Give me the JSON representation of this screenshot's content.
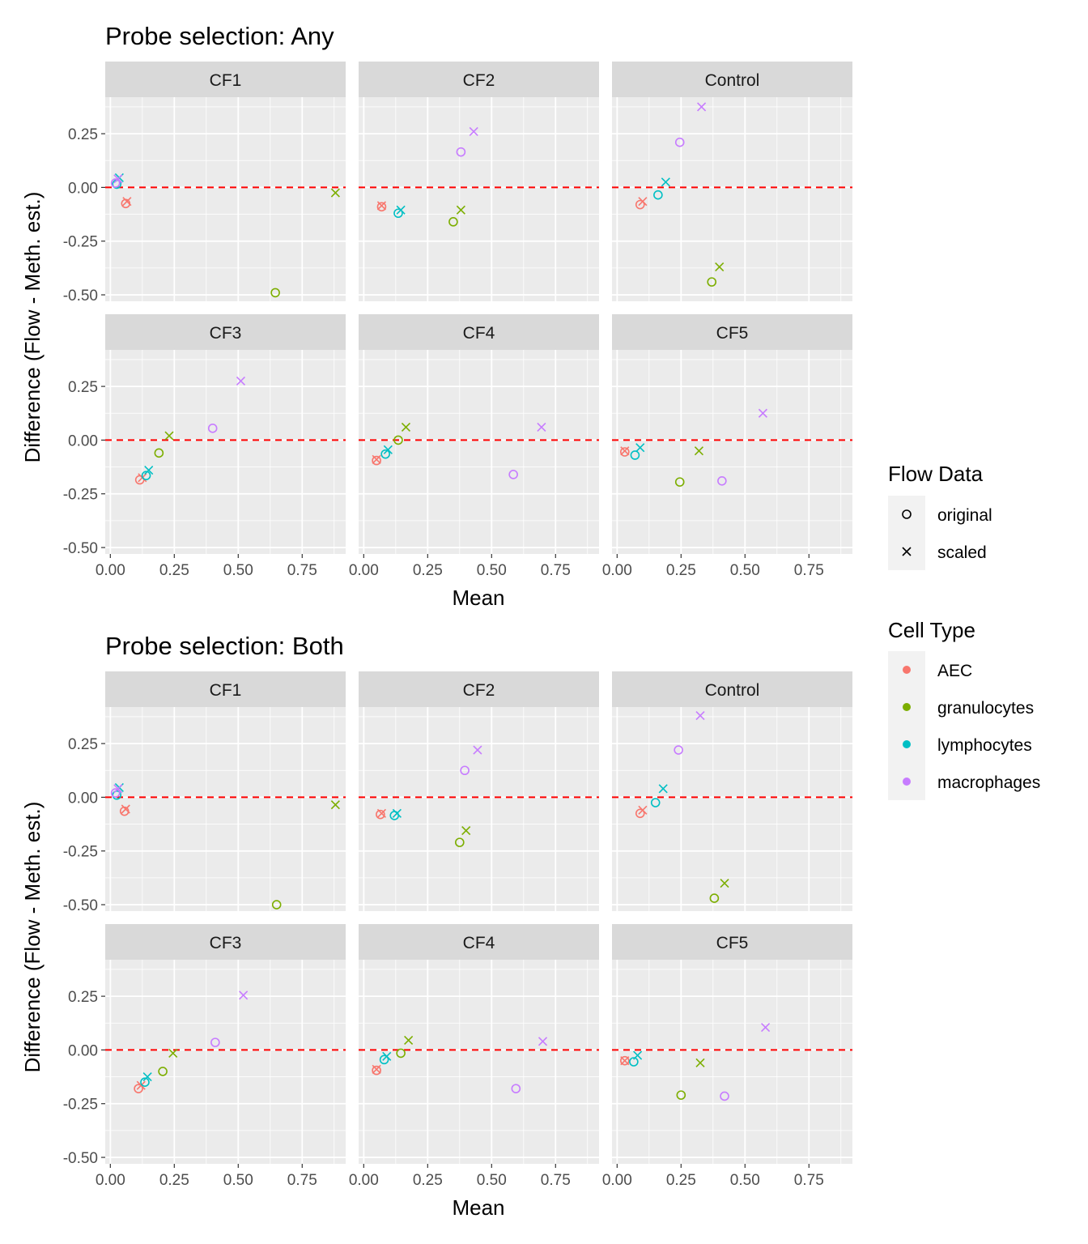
{
  "chart_data": [
    {
      "type": "scatter",
      "title": "Probe selection: Any",
      "xlabel": "Mean",
      "ylabel": "Difference (Flow - Meth. est.)",
      "xlim": [
        -0.02,
        0.92
      ],
      "ylim": [
        -0.53,
        0.42
      ],
      "x_ticks": [
        "0.00",
        "0.25",
        "0.50",
        "0.75"
      ],
      "y_ticks": [
        "0.25",
        "0.00",
        "-0.25",
        "-0.50"
      ],
      "reference_line": 0,
      "grid": true,
      "facets": [
        {
          "label": "CF1",
          "points": [
            {
              "x": 0.06,
              "y": -0.075,
              "cell": "AEC",
              "flow": "original"
            },
            {
              "x": 0.065,
              "y": -0.065,
              "cell": "AEC",
              "flow": "scaled"
            },
            {
              "x": 0.645,
              "y": -0.49,
              "cell": "granulocytes",
              "flow": "original"
            },
            {
              "x": 0.88,
              "y": -0.025,
              "cell": "granulocytes",
              "flow": "scaled"
            },
            {
              "x": 0.025,
              "y": 0.015,
              "cell": "lymphocytes",
              "flow": "original"
            },
            {
              "x": 0.035,
              "y": 0.045,
              "cell": "lymphocytes",
              "flow": "scaled"
            },
            {
              "x": 0.02,
              "y": 0.02,
              "cell": "macrophages",
              "flow": "original"
            },
            {
              "x": 0.03,
              "y": 0.04,
              "cell": "macrophages",
              "flow": "scaled"
            }
          ]
        },
        {
          "label": "CF2",
          "points": [
            {
              "x": 0.07,
              "y": -0.09,
              "cell": "AEC",
              "flow": "original"
            },
            {
              "x": 0.07,
              "y": -0.085,
              "cell": "AEC",
              "flow": "scaled"
            },
            {
              "x": 0.35,
              "y": -0.16,
              "cell": "granulocytes",
              "flow": "original"
            },
            {
              "x": 0.38,
              "y": -0.105,
              "cell": "granulocytes",
              "flow": "scaled"
            },
            {
              "x": 0.135,
              "y": -0.12,
              "cell": "lymphocytes",
              "flow": "original"
            },
            {
              "x": 0.145,
              "y": -0.105,
              "cell": "lymphocytes",
              "flow": "scaled"
            },
            {
              "x": 0.38,
              "y": 0.165,
              "cell": "macrophages",
              "flow": "original"
            },
            {
              "x": 0.43,
              "y": 0.26,
              "cell": "macrophages",
              "flow": "scaled"
            }
          ]
        },
        {
          "label": "Control",
          "points": [
            {
              "x": 0.09,
              "y": -0.08,
              "cell": "AEC",
              "flow": "original"
            },
            {
              "x": 0.1,
              "y": -0.065,
              "cell": "AEC",
              "flow": "scaled"
            },
            {
              "x": 0.37,
              "y": -0.44,
              "cell": "granulocytes",
              "flow": "original"
            },
            {
              "x": 0.4,
              "y": -0.37,
              "cell": "granulocytes",
              "flow": "scaled"
            },
            {
              "x": 0.16,
              "y": -0.035,
              "cell": "lymphocytes",
              "flow": "original"
            },
            {
              "x": 0.19,
              "y": 0.025,
              "cell": "lymphocytes",
              "flow": "scaled"
            },
            {
              "x": 0.245,
              "y": 0.21,
              "cell": "macrophages",
              "flow": "original"
            },
            {
              "x": 0.33,
              "y": 0.375,
              "cell": "macrophages",
              "flow": "scaled"
            }
          ]
        },
        {
          "label": "CF3",
          "points": [
            {
              "x": 0.115,
              "y": -0.185,
              "cell": "AEC",
              "flow": "original"
            },
            {
              "x": 0.125,
              "y": -0.175,
              "cell": "AEC",
              "flow": "scaled"
            },
            {
              "x": 0.19,
              "y": -0.06,
              "cell": "granulocytes",
              "flow": "original"
            },
            {
              "x": 0.23,
              "y": 0.02,
              "cell": "granulocytes",
              "flow": "scaled"
            },
            {
              "x": 0.14,
              "y": -0.165,
              "cell": "lymphocytes",
              "flow": "original"
            },
            {
              "x": 0.15,
              "y": -0.14,
              "cell": "lymphocytes",
              "flow": "scaled"
            },
            {
              "x": 0.4,
              "y": 0.055,
              "cell": "macrophages",
              "flow": "original"
            },
            {
              "x": 0.51,
              "y": 0.275,
              "cell": "macrophages",
              "flow": "scaled"
            }
          ]
        },
        {
          "label": "CF4",
          "points": [
            {
              "x": 0.05,
              "y": -0.095,
              "cell": "AEC",
              "flow": "original"
            },
            {
              "x": 0.05,
              "y": -0.09,
              "cell": "AEC",
              "flow": "scaled"
            },
            {
              "x": 0.135,
              "y": 0.0,
              "cell": "granulocytes",
              "flow": "original"
            },
            {
              "x": 0.165,
              "y": 0.06,
              "cell": "granulocytes",
              "flow": "scaled"
            },
            {
              "x": 0.085,
              "y": -0.065,
              "cell": "lymphocytes",
              "flow": "original"
            },
            {
              "x": 0.095,
              "y": -0.045,
              "cell": "lymphocytes",
              "flow": "scaled"
            },
            {
              "x": 0.585,
              "y": -0.16,
              "cell": "macrophages",
              "flow": "original"
            },
            {
              "x": 0.695,
              "y": 0.06,
              "cell": "macrophages",
              "flow": "scaled"
            }
          ]
        },
        {
          "label": "CF5",
          "points": [
            {
              "x": 0.03,
              "y": -0.055,
              "cell": "AEC",
              "flow": "original"
            },
            {
              "x": 0.03,
              "y": -0.05,
              "cell": "AEC",
              "flow": "scaled"
            },
            {
              "x": 0.245,
              "y": -0.195,
              "cell": "granulocytes",
              "flow": "original"
            },
            {
              "x": 0.32,
              "y": -0.05,
              "cell": "granulocytes",
              "flow": "scaled"
            },
            {
              "x": 0.07,
              "y": -0.07,
              "cell": "lymphocytes",
              "flow": "original"
            },
            {
              "x": 0.09,
              "y": -0.035,
              "cell": "lymphocytes",
              "flow": "scaled"
            },
            {
              "x": 0.41,
              "y": -0.19,
              "cell": "macrophages",
              "flow": "original"
            },
            {
              "x": 0.57,
              "y": 0.125,
              "cell": "macrophages",
              "flow": "scaled"
            }
          ]
        }
      ]
    },
    {
      "type": "scatter",
      "title": "Probe selection: Both",
      "xlabel": "Mean",
      "ylabel": "Difference (Flow - Meth. est.)",
      "xlim": [
        -0.02,
        0.92
      ],
      "ylim": [
        -0.53,
        0.42
      ],
      "x_ticks": [
        "0.00",
        "0.25",
        "0.50",
        "0.75"
      ],
      "y_ticks": [
        "0.25",
        "0.00",
        "-0.25",
        "-0.50"
      ],
      "reference_line": 0,
      "grid": true,
      "facets": [
        {
          "label": "CF1",
          "points": [
            {
              "x": 0.055,
              "y": -0.065,
              "cell": "AEC",
              "flow": "original"
            },
            {
              "x": 0.06,
              "y": -0.055,
              "cell": "AEC",
              "flow": "scaled"
            },
            {
              "x": 0.65,
              "y": -0.5,
              "cell": "granulocytes",
              "flow": "original"
            },
            {
              "x": 0.88,
              "y": -0.035,
              "cell": "granulocytes",
              "flow": "scaled"
            },
            {
              "x": 0.025,
              "y": 0.01,
              "cell": "lymphocytes",
              "flow": "original"
            },
            {
              "x": 0.035,
              "y": 0.045,
              "cell": "lymphocytes",
              "flow": "scaled"
            },
            {
              "x": 0.02,
              "y": 0.02,
              "cell": "macrophages",
              "flow": "original"
            },
            {
              "x": 0.03,
              "y": 0.04,
              "cell": "macrophages",
              "flow": "scaled"
            }
          ]
        },
        {
          "label": "CF2",
          "points": [
            {
              "x": 0.065,
              "y": -0.08,
              "cell": "AEC",
              "flow": "original"
            },
            {
              "x": 0.07,
              "y": -0.075,
              "cell": "AEC",
              "flow": "scaled"
            },
            {
              "x": 0.375,
              "y": -0.21,
              "cell": "granulocytes",
              "flow": "original"
            },
            {
              "x": 0.4,
              "y": -0.155,
              "cell": "granulocytes",
              "flow": "scaled"
            },
            {
              "x": 0.12,
              "y": -0.085,
              "cell": "lymphocytes",
              "flow": "original"
            },
            {
              "x": 0.13,
              "y": -0.075,
              "cell": "lymphocytes",
              "flow": "scaled"
            },
            {
              "x": 0.395,
              "y": 0.125,
              "cell": "macrophages",
              "flow": "original"
            },
            {
              "x": 0.445,
              "y": 0.22,
              "cell": "macrophages",
              "flow": "scaled"
            }
          ]
        },
        {
          "label": "Control",
          "points": [
            {
              "x": 0.09,
              "y": -0.075,
              "cell": "AEC",
              "flow": "original"
            },
            {
              "x": 0.1,
              "y": -0.06,
              "cell": "AEC",
              "flow": "scaled"
            },
            {
              "x": 0.38,
              "y": -0.47,
              "cell": "granulocytes",
              "flow": "original"
            },
            {
              "x": 0.42,
              "y": -0.4,
              "cell": "granulocytes",
              "flow": "scaled"
            },
            {
              "x": 0.15,
              "y": -0.025,
              "cell": "lymphocytes",
              "flow": "original"
            },
            {
              "x": 0.18,
              "y": 0.04,
              "cell": "lymphocytes",
              "flow": "scaled"
            },
            {
              "x": 0.24,
              "y": 0.22,
              "cell": "macrophages",
              "flow": "original"
            },
            {
              "x": 0.325,
              "y": 0.38,
              "cell": "macrophages",
              "flow": "scaled"
            }
          ]
        },
        {
          "label": "CF3",
          "points": [
            {
              "x": 0.11,
              "y": -0.18,
              "cell": "AEC",
              "flow": "original"
            },
            {
              "x": 0.12,
              "y": -0.165,
              "cell": "AEC",
              "flow": "scaled"
            },
            {
              "x": 0.205,
              "y": -0.1,
              "cell": "granulocytes",
              "flow": "original"
            },
            {
              "x": 0.245,
              "y": -0.015,
              "cell": "granulocytes",
              "flow": "scaled"
            },
            {
              "x": 0.135,
              "y": -0.15,
              "cell": "lymphocytes",
              "flow": "original"
            },
            {
              "x": 0.145,
              "y": -0.125,
              "cell": "lymphocytes",
              "flow": "scaled"
            },
            {
              "x": 0.41,
              "y": 0.035,
              "cell": "macrophages",
              "flow": "original"
            },
            {
              "x": 0.52,
              "y": 0.255,
              "cell": "macrophages",
              "flow": "scaled"
            }
          ]
        },
        {
          "label": "CF4",
          "points": [
            {
              "x": 0.05,
              "y": -0.095,
              "cell": "AEC",
              "flow": "original"
            },
            {
              "x": 0.05,
              "y": -0.09,
              "cell": "AEC",
              "flow": "scaled"
            },
            {
              "x": 0.145,
              "y": -0.015,
              "cell": "granulocytes",
              "flow": "original"
            },
            {
              "x": 0.175,
              "y": 0.045,
              "cell": "granulocytes",
              "flow": "scaled"
            },
            {
              "x": 0.08,
              "y": -0.045,
              "cell": "lymphocytes",
              "flow": "original"
            },
            {
              "x": 0.09,
              "y": -0.03,
              "cell": "lymphocytes",
              "flow": "scaled"
            },
            {
              "x": 0.595,
              "y": -0.18,
              "cell": "macrophages",
              "flow": "original"
            },
            {
              "x": 0.7,
              "y": 0.04,
              "cell": "macrophages",
              "flow": "scaled"
            }
          ]
        },
        {
          "label": "CF5",
          "points": [
            {
              "x": 0.03,
              "y": -0.05,
              "cell": "AEC",
              "flow": "original"
            },
            {
              "x": 0.03,
              "y": -0.05,
              "cell": "AEC",
              "flow": "scaled"
            },
            {
              "x": 0.25,
              "y": -0.21,
              "cell": "granulocytes",
              "flow": "original"
            },
            {
              "x": 0.325,
              "y": -0.06,
              "cell": "granulocytes",
              "flow": "scaled"
            },
            {
              "x": 0.065,
              "y": -0.055,
              "cell": "lymphocytes",
              "flow": "original"
            },
            {
              "x": 0.08,
              "y": -0.025,
              "cell": "lymphocytes",
              "flow": "scaled"
            },
            {
              "x": 0.42,
              "y": -0.215,
              "cell": "macrophages",
              "flow": "original"
            },
            {
              "x": 0.58,
              "y": 0.105,
              "cell": "macrophages",
              "flow": "scaled"
            }
          ]
        }
      ]
    }
  ],
  "legend": {
    "flow": {
      "title": "Flow Data",
      "items": [
        {
          "key": "original",
          "label": "original",
          "shape": "circle"
        },
        {
          "key": "scaled",
          "label": "scaled",
          "shape": "cross"
        }
      ]
    },
    "cell": {
      "title": "Cell Type",
      "items": [
        {
          "key": "AEC",
          "label": "AEC",
          "color": "#F8766D"
        },
        {
          "key": "granulocytes",
          "label": "granulocytes",
          "color": "#7CAE00"
        },
        {
          "key": "lymphocytes",
          "label": "lymphocytes",
          "color": "#00BFC4"
        },
        {
          "key": "macrophages",
          "label": "macrophages",
          "color": "#C77CFF"
        }
      ]
    }
  },
  "colors": {
    "panel_bg": "#EBEBEB",
    "strip_bg": "#D9D9D9",
    "grid": "#FFFFFF",
    "reference_line": "#FF0000"
  }
}
